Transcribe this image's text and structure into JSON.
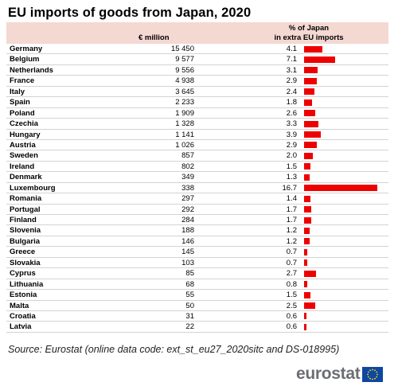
{
  "title": "EU imports of goods from Japan, 2020",
  "columns": {
    "million": "€ million",
    "pct_line1": "% of Japan",
    "pct_line2": "in extra EU imports"
  },
  "chart_data": {
    "type": "table",
    "title": "EU imports of goods from Japan, 2020",
    "columns": [
      "€ million",
      "% of Japan in extra EU imports"
    ],
    "bar_color": "#ee0000",
    "rows": [
      {
        "country": "Germany",
        "value": "15 450",
        "pct": "4.1",
        "pct_num": 4.1
      },
      {
        "country": "Belgium",
        "value": "9 577",
        "pct": "7.1",
        "pct_num": 7.1
      },
      {
        "country": "Netherlands",
        "value": "9 556",
        "pct": "3.1",
        "pct_num": 3.1
      },
      {
        "country": "France",
        "value": "4 938",
        "pct": "2.9",
        "pct_num": 2.9
      },
      {
        "country": "Italy",
        "value": "3 645",
        "pct": "2.4",
        "pct_num": 2.4
      },
      {
        "country": "Spain",
        "value": "2 233",
        "pct": "1.8",
        "pct_num": 1.8
      },
      {
        "country": "Poland",
        "value": "1 909",
        "pct": "2.6",
        "pct_num": 2.6
      },
      {
        "country": "Czechia",
        "value": "1 328",
        "pct": "3.3",
        "pct_num": 3.3
      },
      {
        "country": "Hungary",
        "value": "1 141",
        "pct": "3.9",
        "pct_num": 3.9
      },
      {
        "country": "Austria",
        "value": "1 026",
        "pct": "2.9",
        "pct_num": 2.9
      },
      {
        "country": "Sweden",
        "value": "857",
        "pct": "2.0",
        "pct_num": 2.0
      },
      {
        "country": "Ireland",
        "value": "802",
        "pct": "1.5",
        "pct_num": 1.5
      },
      {
        "country": "Denmark",
        "value": "349",
        "pct": "1.3",
        "pct_num": 1.3
      },
      {
        "country": "Luxembourg",
        "value": "338",
        "pct": "16.7",
        "pct_num": 16.7
      },
      {
        "country": "Romania",
        "value": "297",
        "pct": "1.4",
        "pct_num": 1.4
      },
      {
        "country": "Portugal",
        "value": "292",
        "pct": "1.7",
        "pct_num": 1.7
      },
      {
        "country": "Finland",
        "value": "284",
        "pct": "1.7",
        "pct_num": 1.7
      },
      {
        "country": "Slovenia",
        "value": "188",
        "pct": "1.2",
        "pct_num": 1.2
      },
      {
        "country": "Bulgaria",
        "value": "146",
        "pct": "1.2",
        "pct_num": 1.2
      },
      {
        "country": "Greece",
        "value": "145",
        "pct": "0.7",
        "pct_num": 0.7
      },
      {
        "country": "Slovakia",
        "value": "103",
        "pct": "0.7",
        "pct_num": 0.7
      },
      {
        "country": "Cyprus",
        "value": "85",
        "pct": "2.7",
        "pct_num": 2.7
      },
      {
        "country": "Lithuania",
        "value": "68",
        "pct": "0.8",
        "pct_num": 0.8
      },
      {
        "country": "Estonia",
        "value": "55",
        "pct": "1.5",
        "pct_num": 1.5
      },
      {
        "country": "Malta",
        "value": "50",
        "pct": "2.5",
        "pct_num": 2.5
      },
      {
        "country": "Croatia",
        "value": "31",
        "pct": "0.6",
        "pct_num": 0.6
      },
      {
        "country": "Latvia",
        "value": "22",
        "pct": "0.6",
        "pct_num": 0.6
      }
    ]
  },
  "source": "Source: Eurostat (online data code: ext_st_eu27_2020sitc and DS-018995)",
  "logo": {
    "text": "eurostat",
    "icon": "eu-flag-icon",
    "flag_color": "#0e47a1",
    "star_color": "#ffdd00"
  }
}
